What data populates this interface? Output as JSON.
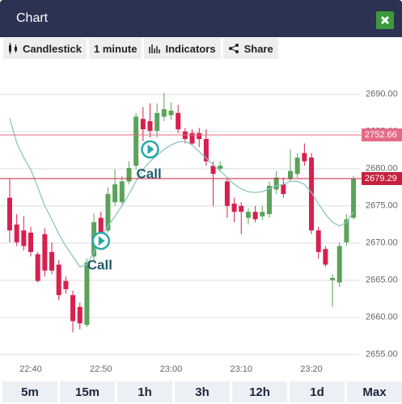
{
  "header": {
    "title": "Chart"
  },
  "toolbar": [
    "Candlestick",
    "1 minute",
    "Indicators",
    "Share"
  ],
  "chart_data": {
    "type": "candlestick",
    "categories": [
      null,
      null,
      null,
      "22:40",
      null,
      null,
      null,
      null,
      null,
      null,
      null,
      null,
      null,
      "22:50",
      null,
      null,
      null,
      null,
      null,
      null,
      null,
      null,
      null,
      "23:00",
      null,
      null,
      null,
      null,
      null,
      null,
      null,
      null,
      null,
      "23:10",
      null,
      null,
      null,
      null,
      null,
      null,
      null,
      null,
      null,
      "23:20",
      null,
      null,
      null,
      null,
      null,
      null
    ],
    "open": [
      2676.1,
      2672.5,
      2671.7,
      2671.4,
      2668.5,
      2671.2,
      2668.8,
      2667.1,
      2664.9,
      2663.0,
      2661.4,
      2659.0,
      2668.2,
      2673.4,
      2671.7,
      2675.5,
      2675.5,
      2678.3,
      2680.4,
      2686.7,
      2686.4,
      2685.1,
      2687.0,
      2687.2,
      2687.5,
      2685.0,
      2684.8,
      2684.8,
      2684.0,
      2680.4,
      2680.0,
      2678.3,
      2675.3,
      2675.0,
      2673.4,
      2674.2,
      2673.6,
      2673.9,
      2677.2,
      2677.9,
      2678.6,
      2679.3,
      2682.1,
      2681.5,
      2671.7,
      2669.2,
      2665.0,
      2664.7,
      2670.1,
      2673.4
    ],
    "high": [
      2678.6,
      2673.9,
      2673.6,
      2672.2,
      2668.8,
      2672.0,
      2670.1,
      2667.7,
      2665.5,
      2663.6,
      2662.0,
      2667.9,
      2674.0,
      2674.2,
      2677.5,
      2679.9,
      2679.0,
      2681.0,
      2687.5,
      2688.3,
      2688.8,
      2688.8,
      2690.2,
      2688.9,
      2688.6,
      2685.5,
      2685.3,
      2685.5,
      2685.3,
      2681.0,
      2681.0,
      2678.6,
      2676.1,
      2675.5,
      2674.7,
      2675.0,
      2675.0,
      2678.3,
      2679.7,
      2678.8,
      2682.6,
      2682.1,
      2683.4,
      2682.1,
      2672.2,
      2669.6,
      2665.8,
      2670.1,
      2673.9,
      2679.0
    ],
    "low": [
      2670.1,
      2669.6,
      2669.0,
      2668.2,
      2664.7,
      2665.5,
      2665.8,
      2662.3,
      2663.2,
      2658.0,
      2658.4,
      2658.7,
      2667.7,
      2670.1,
      2671.4,
      2675.0,
      2675.2,
      2677.9,
      2679.9,
      2683.7,
      2684.2,
      2684.2,
      2686.4,
      2686.6,
      2684.8,
      2683.4,
      2683.2,
      2682.9,
      2680.4,
      2675.0,
      2679.6,
      2673.4,
      2672.8,
      2671.2,
      2672.5,
      2672.8,
      2673.1,
      2673.4,
      2676.6,
      2676.1,
      2678.3,
      2678.8,
      2680.4,
      2671.2,
      2667.9,
      2666.8,
      2661.4,
      2664.1,
      2669.6,
      2673.2
    ],
    "close": [
      2671.7,
      2670.1,
      2669.6,
      2668.8,
      2664.9,
      2666.3,
      2666.3,
      2663.0,
      2663.8,
      2659.5,
      2659.2,
      2667.4,
      2672.8,
      2671.2,
      2676.6,
      2677.9,
      2678.3,
      2680.1,
      2687.0,
      2685.3,
      2685.1,
      2687.5,
      2688.0,
      2687.8,
      2685.3,
      2684.0,
      2683.4,
      2684.0,
      2681.0,
      2679.3,
      2680.4,
      2675.0,
      2674.2,
      2674.2,
      2674.2,
      2673.2,
      2674.2,
      2677.7,
      2678.8,
      2676.6,
      2679.7,
      2681.5,
      2681.0,
      2671.7,
      2668.8,
      2667.1,
      2665.3,
      2669.6,
      2673.2,
      2678.6
    ],
    "up_color": "#5aa35a",
    "down_color": "#d81f4f",
    "moving_average": {
      "color": "#8cc4c4",
      "values": [
        2686.8,
        2683.5,
        2681.5,
        2679.9,
        2677.5,
        2675.0,
        2673.2,
        2671.2,
        2669.6,
        2668.2,
        2666.8,
        2667.1,
        2668.8,
        2670.7,
        2672.3,
        2673.6,
        2675.0,
        2676.6,
        2678.3,
        2679.9,
        2681.0,
        2681.8,
        2682.6,
        2683.2,
        2683.6,
        2683.7,
        2683.2,
        2682.3,
        2681.4,
        2680.5,
        2679.7,
        2678.8,
        2677.9,
        2677.3,
        2676.9,
        2676.8,
        2676.9,
        2677.3,
        2677.7,
        2677.9,
        2678.3,
        2678.3,
        2677.9,
        2676.8,
        2675.3,
        2673.9,
        2672.8,
        2672.3,
        2672.8,
        2674.2
      ]
    },
    "ylim": [
      2652.7,
      2694.0
    ],
    "yticks": [
      {
        "value": 2655,
        "label": "2655.00"
      },
      {
        "value": 2660,
        "label": "2660.00"
      },
      {
        "value": 2665,
        "label": "2665.00"
      },
      {
        "value": 2670,
        "label": "2670.00"
      },
      {
        "value": 2675,
        "label": "2675.00"
      },
      {
        "value": 2680,
        "label": "2680.00"
      },
      {
        "value": 2685,
        "label": "2685.00"
      },
      {
        "value": 2690,
        "label": "2690.00"
      }
    ],
    "grid": true,
    "price_lines": [
      {
        "label": "2752.66",
        "color": "#e46b86"
      },
      {
        "label": "2679.29",
        "color": "#c7203f"
      }
    ],
    "annotations": [
      {
        "text": "Call",
        "category": 20,
        "value": 2682.6,
        "color": "#1f5f6b"
      },
      {
        "text": "Call",
        "category": 13,
        "value": 2670.3,
        "color": "#1f5f6b"
      }
    ]
  },
  "ranges": [
    "5m",
    "15m",
    "1h",
    "3h",
    "12h",
    "1d",
    "Max"
  ]
}
